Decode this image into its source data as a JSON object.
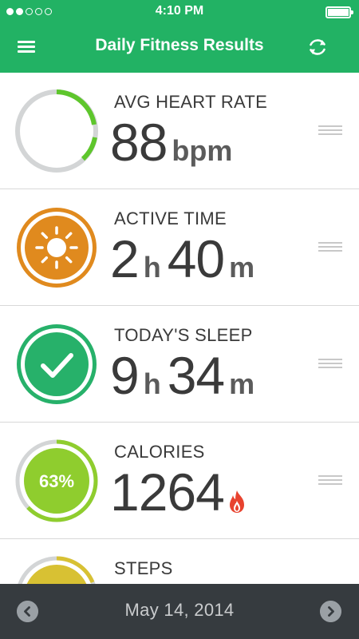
{
  "status_bar": {
    "time": "4:10 PM",
    "signal_dots_filled": 2,
    "signal_dots_total": 5
  },
  "header": {
    "title": "Daily Fitness Results",
    "menu_icon": "menu-icon",
    "refresh_icon": "refresh-icon",
    "bg_color": "#22b264"
  },
  "metrics": [
    {
      "label": "AVG HEART RATE",
      "value": "88",
      "unit": "bpm",
      "icon": "heart-rate-ring",
      "color": "#5ec62c"
    },
    {
      "label": "ACTIVE TIME",
      "hours": "2",
      "hours_unit": "h",
      "minutes": "40",
      "minutes_unit": "m",
      "icon": "sun-icon",
      "color": "#e08a1e"
    },
    {
      "label": "TODAY'S SLEEP",
      "hours": "9",
      "hours_unit": "h",
      "minutes": "34",
      "minutes_unit": "m",
      "icon": "checkmark-icon",
      "color": "#27b16a"
    },
    {
      "label": "CALORIES",
      "value": "1264",
      "percent": "63%",
      "percent_value": 0.63,
      "icon": "flame-icon",
      "color": "#8fcd2e",
      "flame_color": "#e8432f"
    },
    {
      "label": "STEPS",
      "icon": "steps-ring",
      "color": "#d8c133"
    }
  ],
  "footer": {
    "date": "May 14, 2014",
    "prev_icon": "chevron-left-icon",
    "next_icon": "chevron-right-icon"
  }
}
